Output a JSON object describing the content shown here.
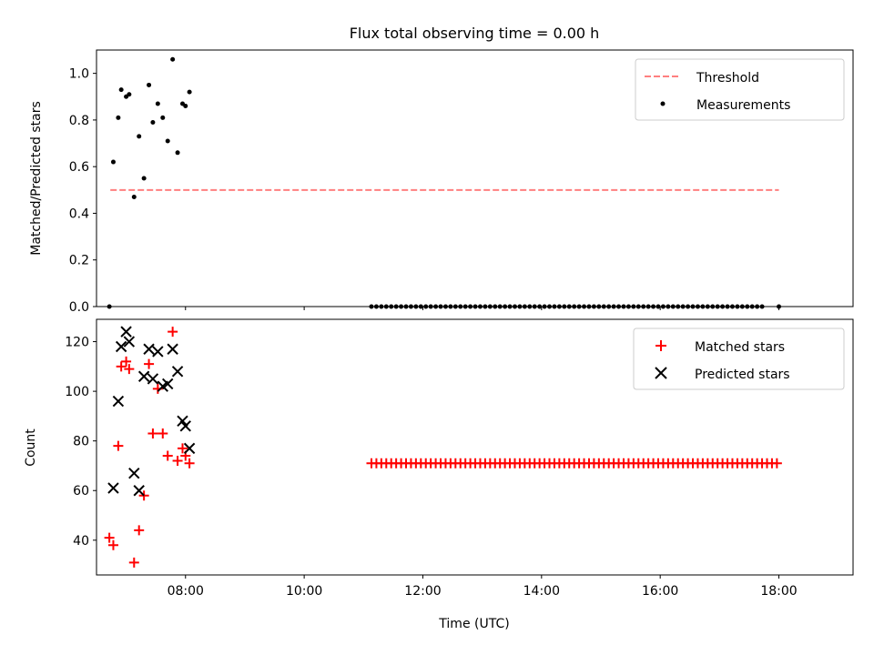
{
  "chart_data": [
    {
      "type": "scatter",
      "title": "Flux total observing time = 0.00 h",
      "xlabel": "",
      "ylabel": "Matched/Predicted stars",
      "xlim": [
        "06:30",
        "19:15"
      ],
      "ylim": [
        0,
        1.1
      ],
      "yticks": [
        "0.0",
        "0.2",
        "0.4",
        "0.6",
        "0.8",
        "1.0"
      ],
      "legend_position": "top-right",
      "legend": [
        "Threshold",
        "Measurements"
      ],
      "threshold": {
        "name": "Threshold",
        "value": 0.5,
        "x_start": "06:44",
        "x_end": "18:00",
        "color": "#ff7f7f"
      },
      "series": [
        {
          "name": "Measurements",
          "color": "#000000",
          "x": [
            "06:43",
            "06:47",
            "06:52",
            "06:55",
            "07:00",
            "07:03",
            "07:08",
            "07:13",
            "07:18",
            "07:23",
            "07:27",
            "07:32",
            "07:37",
            "07:42",
            "07:47",
            "07:52",
            "07:57",
            "08:00",
            "08:04",
            "18:00"
          ],
          "y": [
            0.0,
            0.62,
            0.81,
            0.93,
            0.9,
            0.91,
            0.47,
            0.73,
            0.55,
            0.95,
            0.79,
            0.87,
            0.81,
            0.71,
            1.06,
            0.66,
            0.87,
            0.86,
            0.92,
            0.0
          ]
        },
        {
          "name": "Measurements",
          "color": "#000000",
          "x_start": "11:08",
          "x_end": "17:45",
          "x_step_min": 5,
          "value": 0.0
        }
      ]
    },
    {
      "type": "scatter",
      "title": "",
      "xlabel": "Time (UTC)",
      "ylabel": "Count",
      "xlim": [
        "06:30",
        "19:15"
      ],
      "ylim": [
        26,
        129
      ],
      "yticks": [
        "40",
        "60",
        "80",
        "100",
        "120"
      ],
      "xticks": [
        "08:00",
        "10:00",
        "12:00",
        "14:00",
        "16:00",
        "18:00"
      ],
      "legend_position": "top-right",
      "legend": [
        "Matched stars",
        "Predicted stars"
      ],
      "series": [
        {
          "name": "Matched stars",
          "marker": "plus",
          "color": "#ff0000",
          "x": [
            "06:43",
            "06:47",
            "06:52",
            "06:55",
            "07:00",
            "07:03",
            "07:08",
            "07:13",
            "07:18",
            "07:23",
            "07:27",
            "07:32",
            "07:37",
            "07:42",
            "07:47",
            "07:52",
            "07:57",
            "08:00",
            "08:04"
          ],
          "y": [
            41,
            38,
            78,
            110,
            112,
            109,
            31,
            44,
            58,
            111,
            83,
            101,
            83,
            74,
            124,
            72,
            77,
            74,
            71
          ]
        },
        {
          "name": "Matched stars",
          "marker": "plus",
          "color": "#ff0000",
          "x_start": "11:08",
          "x_end": "18:00",
          "x_step_min": 5,
          "value": 71
        },
        {
          "name": "Predicted stars",
          "marker": "x",
          "color": "#000000",
          "x": [
            "06:47",
            "06:52",
            "06:55",
            "07:00",
            "07:03",
            "07:08",
            "07:13",
            "07:18",
            "07:23",
            "07:27",
            "07:32",
            "07:37",
            "07:42",
            "07:47",
            "07:52",
            "07:57",
            "08:00",
            "08:04"
          ],
          "y": [
            61,
            96,
            118,
            124,
            120,
            67,
            60,
            106,
            117,
            105,
            116,
            102,
            103,
            117,
            108,
            88,
            86,
            77
          ]
        }
      ]
    }
  ]
}
